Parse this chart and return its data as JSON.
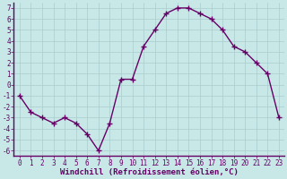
{
  "x": [
    0,
    1,
    2,
    3,
    4,
    5,
    6,
    7,
    8,
    9,
    10,
    11,
    12,
    13,
    14,
    15,
    16,
    17,
    18,
    19,
    20,
    21,
    22,
    23
  ],
  "y": [
    -1,
    -2.5,
    -3,
    -3.5,
    -3,
    -3.5,
    -4.5,
    -6,
    -3.5,
    0.5,
    0.5,
    3.5,
    5,
    6.5,
    7,
    7,
    6.5,
    6,
    5,
    3.5,
    3,
    2,
    1,
    -3
  ],
  "line_color": "#660066",
  "marker": "+",
  "marker_size": 4,
  "marker_linewidth": 1.0,
  "bg_color": "#c8e8e8",
  "grid_color": "#aacccc",
  "xlabel": "Windchill (Refroidissement éolien,°C)",
  "xlabel_fontsize": 6.5,
  "yticks": [
    7,
    6,
    5,
    4,
    3,
    2,
    1,
    0,
    -1,
    -2,
    -3,
    -4,
    -5,
    -6
  ],
  "xlim": [
    -0.5,
    23.5
  ],
  "ylim": [
    -6.5,
    7.5
  ],
  "tick_fontsize": 5.5,
  "linewidth": 1.0,
  "plot_bg": "#cceaea"
}
